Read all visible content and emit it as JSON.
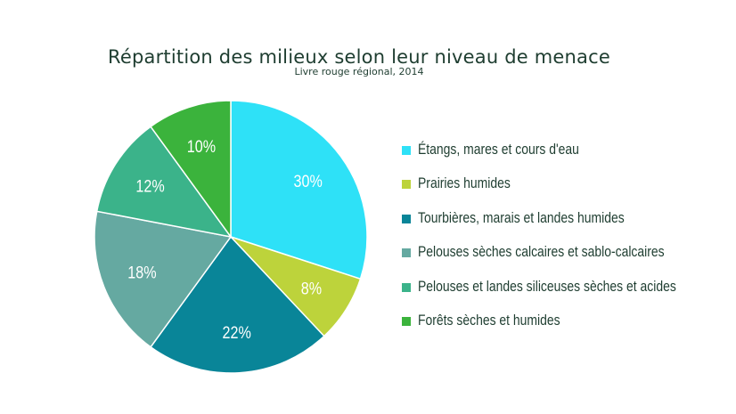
{
  "chart_data": {
    "type": "pie",
    "title": "Répartition des milieux selon leur niveau de menace",
    "subtitle": "Livre rouge régional, 2014",
    "legend_position": "right",
    "slices": [
      {
        "label": "Étangs, mares et cours d'eau",
        "value": 30,
        "data_label": "30%",
        "color": "#2ee1f7"
      },
      {
        "label": "Prairies humides",
        "value": 8,
        "data_label": "8%",
        "color": "#bdd33b"
      },
      {
        "label": "Tourbières, marais et landes humides",
        "value": 22,
        "data_label": "22%",
        "color": "#098598"
      },
      {
        "label": "Pelouses sèches calcaires et sablo-calcaires",
        "value": 18,
        "data_label": "18%",
        "color": "#65a9a1"
      },
      {
        "label": "Pelouses et landes siliceuses sèches et acides",
        "value": 12,
        "data_label": "12%",
        "color": "#3bb38a"
      },
      {
        "label": "Forêts sèches et humides",
        "value": 10,
        "data_label": "10%",
        "color": "#3bb33c"
      }
    ]
  }
}
